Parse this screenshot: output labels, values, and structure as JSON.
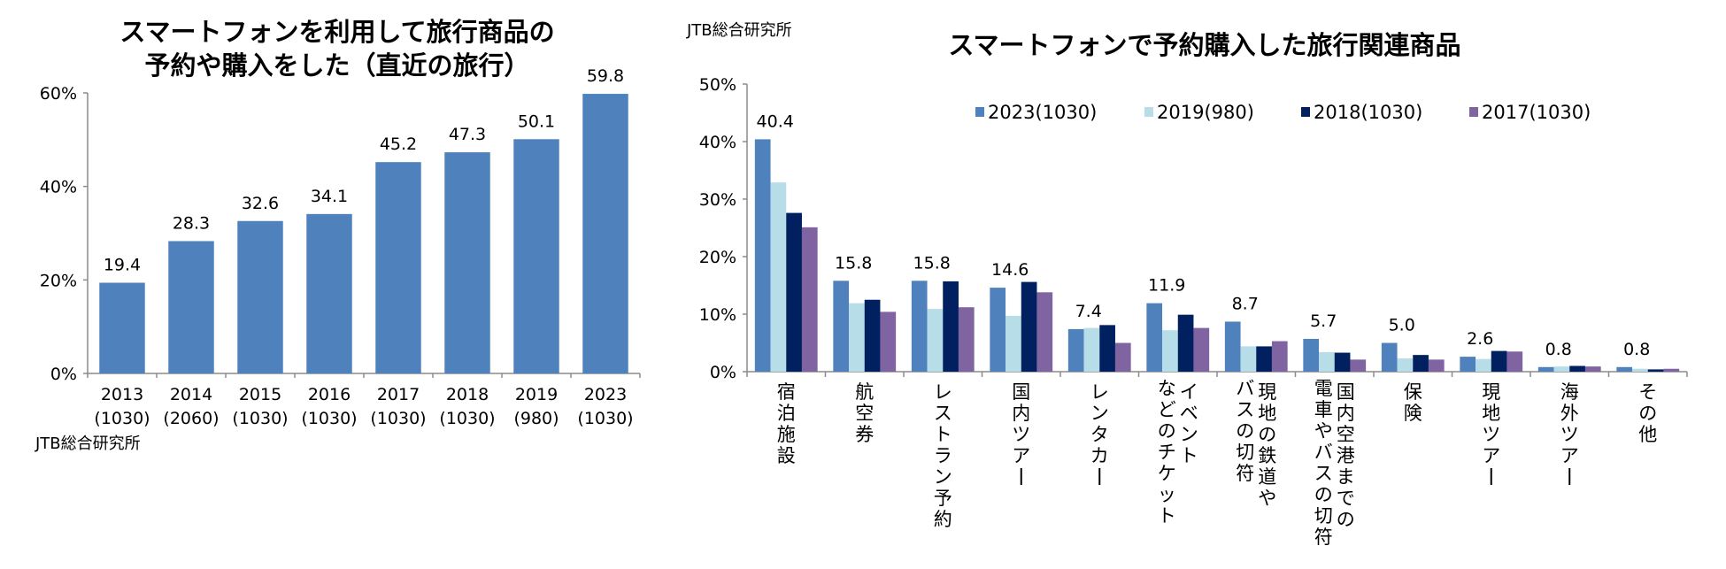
{
  "chart_data": [
    {
      "type": "bar",
      "title": "スマートフォンを利用して旅行商品の予約や購入をした（直近の旅行）",
      "title_lines": [
        "スマートフォンを利用して旅行商品の",
        "予約や購入をした（直近の旅行）"
      ],
      "source": "JTB総合研究所",
      "xlabel": "",
      "ylabel": "",
      "ylim": [
        0,
        60
      ],
      "yticks": [
        0,
        20,
        40,
        60
      ],
      "ytick_labels": [
        "0%",
        "20%",
        "40%",
        "60%"
      ],
      "categories": [
        "2013",
        "2014",
        "2015",
        "2016",
        "2017",
        "2018",
        "2019",
        "2023"
      ],
      "category_samples": [
        "(1030)",
        "(2060)",
        "(1030)",
        "(1030)",
        "(1030)",
        "(1030)",
        "(980)",
        "(1030)"
      ],
      "values": [
        19.4,
        28.3,
        32.6,
        34.1,
        45.2,
        47.3,
        50.1,
        59.8
      ],
      "data_labels": [
        "19.4",
        "28.3",
        "32.6",
        "34.1",
        "45.2",
        "47.3",
        "50.1",
        "59.8"
      ],
      "color": "#4f81bd",
      "grid": false,
      "legend": "none"
    },
    {
      "type": "bar",
      "title": "スマートフォンで予約購入した旅行関連商品",
      "source": "JTB総合研究所",
      "xlabel": "",
      "ylabel": "",
      "ylim": [
        0,
        50
      ],
      "yticks": [
        0,
        10,
        20,
        30,
        40,
        50
      ],
      "ytick_labels": [
        "0%",
        "10%",
        "20%",
        "30%",
        "40%",
        "50%"
      ],
      "categories": [
        [
          "宿泊施設"
        ],
        [
          "航空券"
        ],
        [
          "レストラン予約"
        ],
        [
          "国内ツアー"
        ],
        [
          "レンタカー"
        ],
        [
          "イベント",
          "などのチケット"
        ],
        [
          "現地の鉄道や",
          "バスの切符"
        ],
        [
          "国内空港までの",
          "電車やバスの切符"
        ],
        [
          "保険"
        ],
        [
          "現地ツアー"
        ],
        [
          "海外ツアー"
        ],
        [
          "その他"
        ]
      ],
      "series": [
        {
          "name": "2023(1030)",
          "color": "#4f81bd",
          "values": [
            40.4,
            15.8,
            15.8,
            14.6,
            7.4,
            11.9,
            8.7,
            5.7,
            5.0,
            2.6,
            0.8,
            0.8
          ]
        },
        {
          "name": "2019(980)",
          "color": "#b7dde8",
          "values": [
            32.9,
            11.9,
            10.9,
            9.7,
            7.6,
            7.2,
            4.4,
            3.4,
            2.3,
            2.2,
            0.9,
            0.5
          ]
        },
        {
          "name": "2018(1030)",
          "color": "#002060",
          "values": [
            27.6,
            12.5,
            15.7,
            15.6,
            8.1,
            9.9,
            4.4,
            3.3,
            2.9,
            3.6,
            1.0,
            0.4
          ]
        },
        {
          "name": "2017(1030)",
          "color": "#8064a2",
          "values": [
            25.1,
            10.4,
            11.2,
            13.8,
            5.0,
            7.6,
            5.3,
            2.1,
            2.1,
            3.5,
            0.9,
            0.5
          ]
        }
      ],
      "data_labels_series": "2023(1030)",
      "data_labels": [
        "40.4",
        "15.8",
        "15.8",
        "14.6",
        "7.4",
        "11.9",
        "8.7",
        "5.7",
        "5.0",
        "2.6",
        "0.8",
        "0.8"
      ],
      "grid": false,
      "legend": "top"
    }
  ]
}
